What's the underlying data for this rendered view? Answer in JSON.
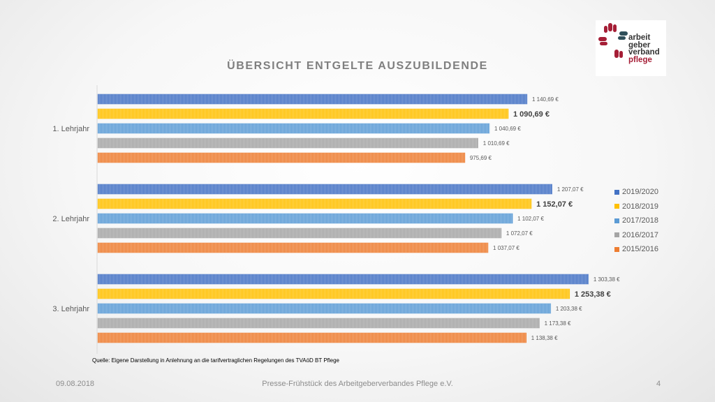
{
  "chart_data": {
    "type": "bar",
    "orientation": "horizontal",
    "title": "ÜBERSICHT ENTGELTE AUSZUBILDENDE",
    "categories": [
      "1. Lehrjahr",
      "2. Lehrjahr",
      "3. Lehrjahr"
    ],
    "series": [
      {
        "name": "2019/2020",
        "color": "#4472c4",
        "values": [
          1140.69,
          1207.07,
          1303.38
        ],
        "labels": [
          "1 140,69 €",
          "1 207,07 €",
          "1 303,38 €"
        ]
      },
      {
        "name": "2018/2019",
        "color": "#ffc000",
        "values": [
          1090.69,
          1152.07,
          1253.38
        ],
        "labels": [
          "1 090,69 €",
          "1 152,07 €",
          "1 253,38 €"
        ],
        "emphasized": true
      },
      {
        "name": "2017/2018",
        "color": "#5b9bd5",
        "values": [
          1040.69,
          1102.07,
          1203.38
        ],
        "labels": [
          "1 040,69 €",
          "1 102,07 €",
          "1 203,38 €"
        ]
      },
      {
        "name": "2016/2017",
        "color": "#a5a5a5",
        "values": [
          1010.69,
          1072.07,
          1173.38
        ],
        "labels": [
          "1 010,69 €",
          "1 072,07 €",
          "1 173,38 €"
        ]
      },
      {
        "name": "2015/2016",
        "color": "#ed7d31",
        "values": [
          975.69,
          1037.07,
          1138.38
        ],
        "labels": [
          "975,69 €",
          "1 037,07 €",
          "1 138,38 €"
        ]
      }
    ],
    "xlim": [
      0,
      1350
    ],
    "grid": false,
    "legend": "right"
  },
  "source_note": "Quelle: Eigene Darstellung in Anlehnung an die tarifvertraglichen Regelungen des TVAöD BT Pflege",
  "footer": {
    "date": "09.08.2018",
    "center": "Presse-Frühstück des Arbeitgeberverbandes Pflege e.V.",
    "page": "4"
  },
  "logo": {
    "line1": "arbeit",
    "line2": "geber",
    "line3": "verband",
    "line4": "pflege"
  }
}
